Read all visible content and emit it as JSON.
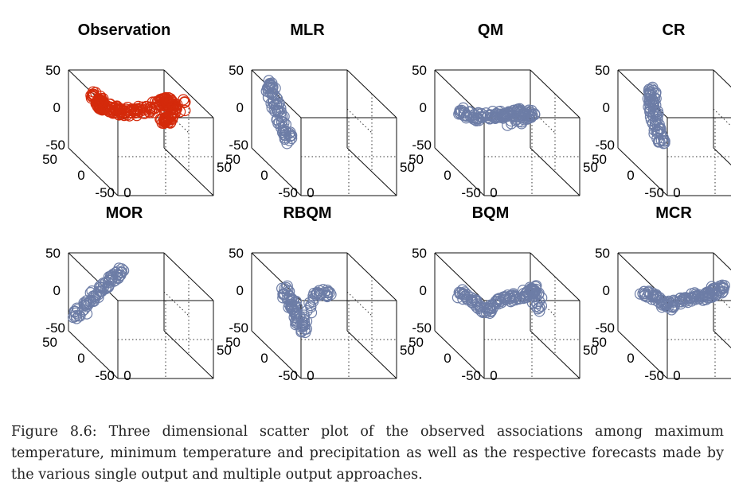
{
  "colors": {
    "observation": "#d42a0b",
    "forecast": "#6d7da6"
  },
  "tick_labels": {
    "z_top": "50",
    "z_mid": "0",
    "z_bottom": "-50",
    "depth_back": "50",
    "depth_mid": "0",
    "depth_front": "-50",
    "x_zero": "0",
    "x_right": "50"
  },
  "chart_data": [
    {
      "type": "scatter",
      "title": "Observation",
      "series": [
        {
          "color": "#d42a0b",
          "points": [
            [
              -0.6,
              -0.6,
              0.5
            ],
            [
              -0.5,
              -0.4,
              0.4
            ],
            [
              -0.4,
              -0.5,
              0.2
            ],
            [
              -0.5,
              -0.6,
              0.35
            ],
            [
              -0.3,
              -0.2,
              0.25
            ],
            [
              -0.2,
              0.0,
              0.3
            ],
            [
              0.0,
              0.3,
              0.4
            ],
            [
              0.2,
              0.6,
              0.6
            ],
            [
              0.35,
              0.9,
              0.9
            ],
            [
              0.5,
              0.8,
              0.85
            ],
            [
              0.6,
              0.95,
              0.8
            ],
            [
              0.55,
              0.5,
              0.25
            ],
            [
              0.7,
              0.2,
              0.15
            ],
            [
              0.9,
              0.7,
              0.8
            ]
          ]
        }
      ]
    },
    {
      "type": "scatter",
      "title": "MLR",
      "series": [
        {
          "color": "#6d7da6",
          "points": [
            [
              -0.7,
              -0.8,
              0.8
            ],
            [
              -0.6,
              -0.9,
              0.4
            ],
            [
              -0.5,
              -0.9,
              0.0
            ],
            [
              -0.4,
              -0.8,
              -0.4
            ],
            [
              -0.3,
              -0.7,
              -0.7
            ]
          ]
        }
      ]
    },
    {
      "type": "scatter",
      "title": "QM",
      "series": [
        {
          "color": "#6d7da6",
          "points": [
            [
              -0.6,
              -0.6,
              0.1
            ],
            [
              -0.4,
              -0.4,
              0.0
            ],
            [
              -0.2,
              0.0,
              0.2
            ],
            [
              0.0,
              0.2,
              0.3
            ],
            [
              0.1,
              0.4,
              0.35
            ],
            [
              0.3,
              0.6,
              0.5
            ],
            [
              0.5,
              0.9,
              0.55
            ],
            [
              0.2,
              0.3,
              0.1
            ]
          ]
        }
      ]
    },
    {
      "type": "scatter",
      "title": "CR",
      "series": [
        {
          "color": "#6d7da6",
          "points": [
            [
              -0.4,
              -0.6,
              0.7
            ],
            [
              -0.4,
              -0.7,
              0.3
            ],
            [
              -0.35,
              -0.7,
              0.0
            ],
            [
              -0.3,
              -0.6,
              -0.4
            ],
            [
              -0.2,
              -0.5,
              -0.7
            ]
          ]
        }
      ]
    },
    {
      "type": "scatter",
      "title": "MOR",
      "series": [
        {
          "color": "#6d7da6",
          "points": [
            [
              -0.9,
              -0.9,
              -0.6
            ],
            [
              -0.7,
              -0.7,
              -0.2
            ],
            [
              -0.5,
              -0.5,
              0.2
            ],
            [
              -0.3,
              -0.3,
              0.6
            ],
            [
              -0.15,
              -0.15,
              0.9
            ]
          ]
        }
      ]
    },
    {
      "type": "scatter",
      "title": "RBQM",
      "series": [
        {
          "color": "#6d7da6",
          "points": [
            [
              -0.5,
              -0.4,
              0.3
            ],
            [
              -0.4,
              -0.3,
              0.0
            ],
            [
              -0.3,
              -0.3,
              -0.3
            ],
            [
              -0.2,
              -0.2,
              -0.7
            ],
            [
              0.0,
              0.2,
              0.4
            ],
            [
              0.2,
              0.4,
              0.5
            ]
          ]
        }
      ]
    },
    {
      "type": "scatter",
      "title": "BQM",
      "series": [
        {
          "color": "#6d7da6",
          "points": [
            [
              -0.6,
              -0.6,
              0.1
            ],
            [
              -0.4,
              -0.4,
              0.0
            ],
            [
              -0.2,
              -0.1,
              -0.2
            ],
            [
              0.0,
              0.2,
              0.2
            ],
            [
              0.2,
              0.5,
              0.4
            ],
            [
              0.4,
              0.8,
              0.6
            ],
            [
              0.5,
              1.0,
              0.8
            ],
            [
              0.6,
              0.9,
              0.2
            ]
          ]
        }
      ]
    },
    {
      "type": "scatter",
      "title": "MCR",
      "series": [
        {
          "color": "#6d7da6",
          "points": [
            [
              -0.6,
              -0.6,
              0.1
            ],
            [
              -0.4,
              -0.4,
              0.1
            ],
            [
              -0.2,
              -0.2,
              -0.1
            ],
            [
              0.0,
              0.1,
              0.2
            ],
            [
              0.2,
              0.4,
              0.4
            ],
            [
              0.4,
              0.7,
              0.6
            ],
            [
              0.6,
              0.9,
              0.8
            ],
            [
              0.3,
              0.3,
              0.3
            ]
          ]
        }
      ]
    }
  ],
  "caption": "Figure 8.6: Three dimensional scatter plot of the observed associations among maximum temperature, minimum temperature and precipitation as well as the respective forecasts made by the various single output and multiple output approaches."
}
